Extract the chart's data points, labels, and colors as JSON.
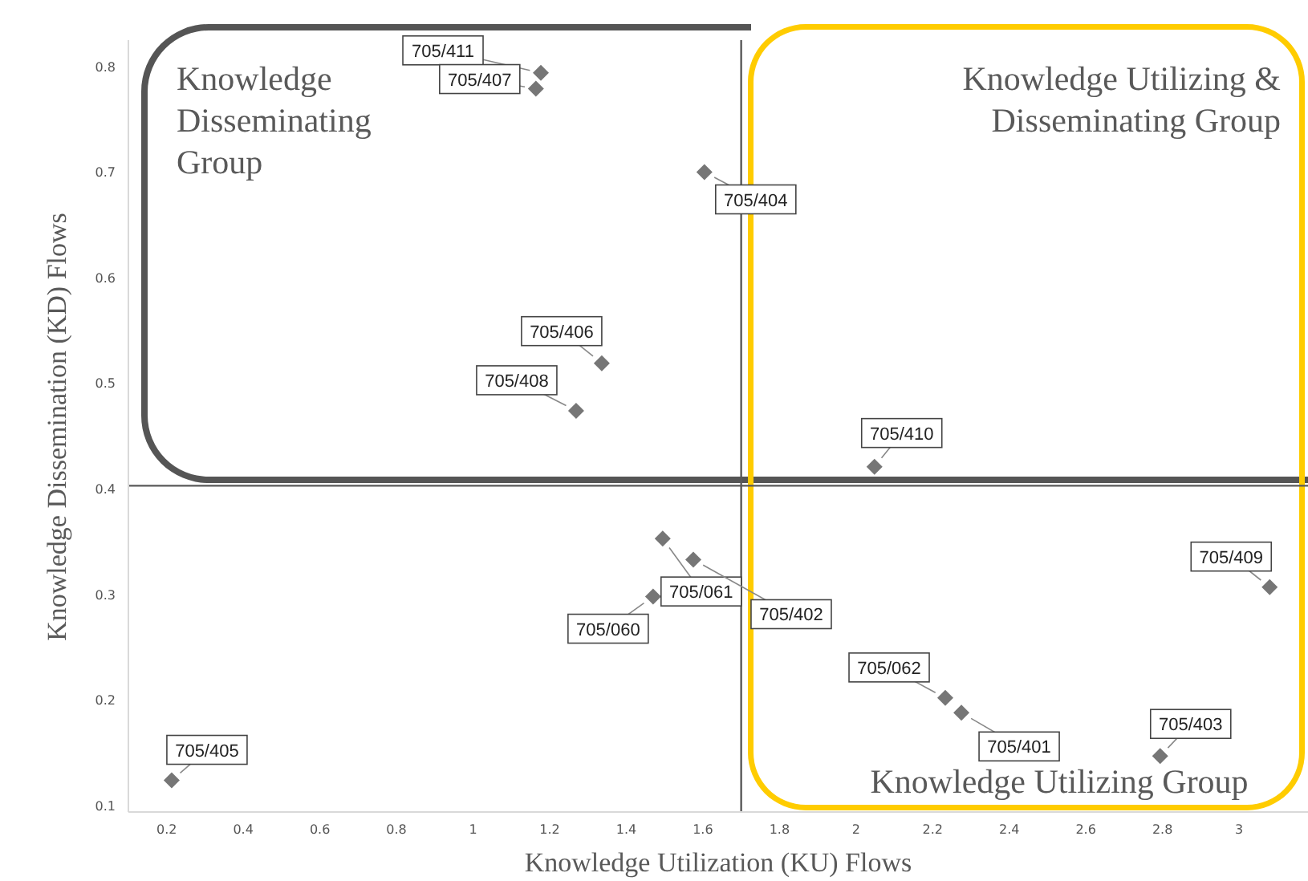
{
  "chart_data": {
    "type": "scatter",
    "xlabel": "Knowledge Utilization (KU) Flows",
    "ylabel": "Knowledge Dissemination (KD) Flows",
    "x": [
      1.177,
      1.164,
      1.604,
      1.336,
      1.269,
      2.048,
      1.495,
      1.575,
      1.47,
      0.213,
      3.08,
      2.233,
      2.275,
      2.794
    ],
    "values": [
      0.794,
      0.779,
      0.7,
      0.519,
      0.474,
      0.421,
      0.353,
      0.333,
      0.298,
      0.124,
      0.307,
      0.202,
      0.188,
      0.147
    ],
    "color": "#767676",
    "marker": "diamond",
    "xlim": [
      0.1,
      3.18
    ],
    "xticks": [
      0.2,
      0.4,
      0.6,
      0.8,
      1,
      1.2,
      1.4,
      1.6,
      1.8,
      2,
      2.2,
      2.4,
      2.6,
      2.8,
      3
    ],
    "ylim": [
      0.094,
      0.825
    ],
    "yticks": [
      0.1,
      0.2,
      0.3,
      0.4,
      0.5,
      0.6,
      0.7,
      0.8
    ],
    "ref_lines": [
      {
        "axis": "x",
        "value": 1.7,
        "color": "#595959"
      },
      {
        "axis": "y",
        "value": 0.403,
        "color": "#595959"
      }
    ],
    "annotations": [
      {
        "text": "705/411",
        "x": 1.177,
        "y": 0.794
      },
      {
        "text": "705/407",
        "x": 1.164,
        "y": 0.779
      },
      {
        "text": "705/404",
        "x": 1.604,
        "y": 0.7
      },
      {
        "text": "705/406",
        "x": 1.336,
        "y": 0.519
      },
      {
        "text": "705/408",
        "x": 1.269,
        "y": 0.474
      },
      {
        "text": "705/410",
        "x": 2.048,
        "y": 0.421
      },
      {
        "text": "705/061",
        "x": 1.495,
        "y": 0.353
      },
      {
        "text": "705/402",
        "x": 1.575,
        "y": 0.333
      },
      {
        "text": "705/060",
        "x": 1.47,
        "y": 0.298
      },
      {
        "text": "705/405",
        "x": 0.213,
        "y": 0.124
      },
      {
        "text": "705/409",
        "x": 3.08,
        "y": 0.307
      },
      {
        "text": "705/062",
        "x": 2.233,
        "y": 0.202
      },
      {
        "text": "705/401",
        "x": 2.275,
        "y": 0.188
      },
      {
        "text": "705/403",
        "x": 2.794,
        "y": 0.147
      },
      "Knowledge Disseminating Group",
      "Knowledge Utilizing & Disseminating Group",
      "Knowledge Utilizing Group"
    ]
  }
}
